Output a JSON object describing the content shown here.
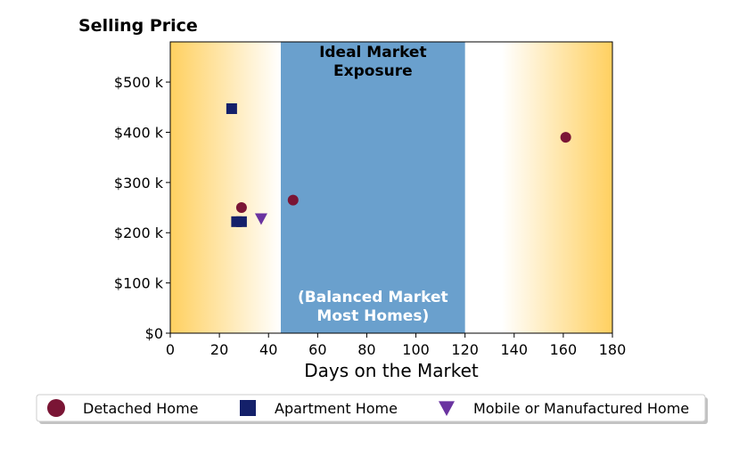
{
  "chart_data": {
    "type": "scatter",
    "title": "Selling Price",
    "xlabel": "Days on the Market",
    "ylabel": "",
    "xlim": [
      0,
      180
    ],
    "ylim": [
      0,
      580000
    ],
    "x_ticks": [
      0,
      20,
      40,
      60,
      80,
      100,
      120,
      140,
      160,
      180
    ],
    "y_ticks": [
      0,
      100000,
      200000,
      300000,
      400000,
      500000
    ],
    "y_tick_labels": [
      "$0",
      "$100 k",
      "$200 k",
      "$300 k",
      "$400 k",
      "$500 k"
    ],
    "grid": false,
    "legend_position": "bottom",
    "background_gradient": {
      "edge_color": "#ffd060",
      "center_color": "#ffffff"
    },
    "band": {
      "x_start": 45,
      "x_end": 120,
      "color": "#6aa0cd",
      "label_top": [
        "Ideal Market",
        "Exposure"
      ],
      "label_bottom": [
        "(Balanced Market",
        "Most Homes)"
      ]
    },
    "series": [
      {
        "name": "Detached Home",
        "marker": "circle",
        "color": "#7a1535",
        "points": [
          {
            "x": 29,
            "y": 250000
          },
          {
            "x": 50,
            "y": 265000
          },
          {
            "x": 161,
            "y": 390000
          }
        ]
      },
      {
        "name": "Apartment Home",
        "marker": "square",
        "color": "#14206a",
        "points": [
          {
            "x": 25,
            "y": 447000
          },
          {
            "x": 27,
            "y": 222000
          },
          {
            "x": 29,
            "y": 222000
          }
        ]
      },
      {
        "name": "Mobile or Manufactured Home",
        "marker": "triangle-down",
        "color": "#6a33a0",
        "points": [
          {
            "x": 37,
            "y": 228000
          }
        ]
      }
    ]
  }
}
